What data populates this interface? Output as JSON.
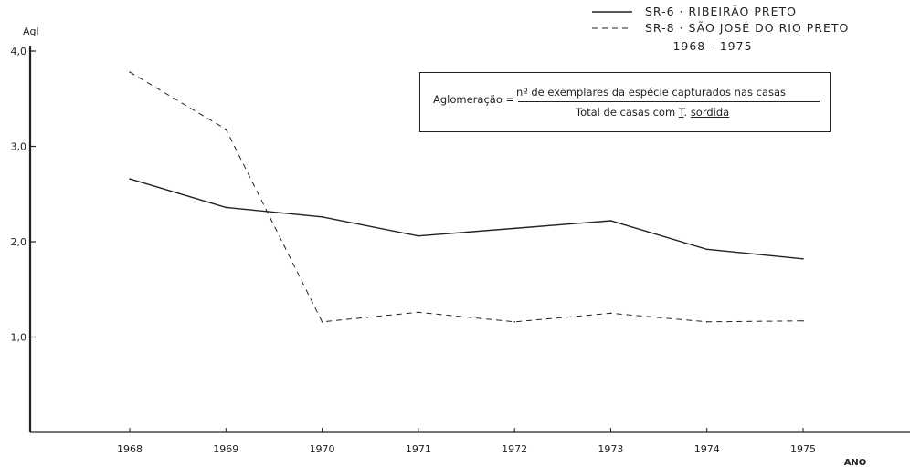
{
  "chart_data": {
    "type": "line",
    "ylabel": "Agl",
    "xlabel": "ANO",
    "ylim": [
      0,
      4
    ],
    "yticks": [
      1,
      2,
      3,
      4
    ],
    "ytick_labels": [
      "1,0",
      "2,0",
      "3,0",
      "4,0"
    ],
    "categories": [
      "1968",
      "1969",
      "1970",
      "1971",
      "1972",
      "1973",
      "1974",
      "1975"
    ],
    "series": [
      {
        "name": "SR-6 · RIBEIRÃO PRETO",
        "style": "solid",
        "values": [
          2.66,
          2.36,
          2.26,
          2.06,
          2.14,
          2.22,
          1.92,
          1.82
        ]
      },
      {
        "name": "SR-8 · SÃO JOSÉ DO RIO PRETO",
        "style": "dashed",
        "values": [
          3.78,
          3.18,
          1.16,
          1.26,
          1.16,
          1.25,
          1.16,
          1.17
        ]
      }
    ],
    "legend_period": "1968 - 1975",
    "legend_position": "top-right",
    "grid": false
  },
  "formula": {
    "label": "Aglomeração =",
    "numerator": "nº de exemplares da espécie capturados nas casas",
    "denominator_prefix": "Total de casas com",
    "species_abbrev": "T",
    "species_name": "sordida"
  },
  "colors": {
    "ink": "#222222",
    "background": "#ffffff"
  }
}
